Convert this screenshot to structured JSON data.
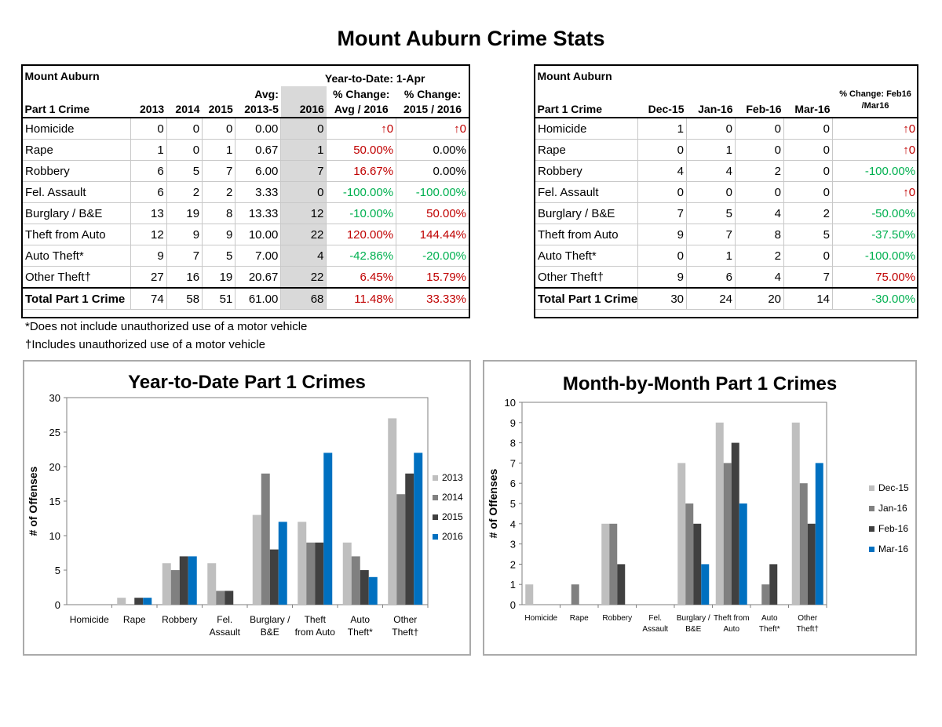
{
  "page_title": "Mount Auburn Crime Stats",
  "ytd_table": {
    "title": "Mount Auburn",
    "ytd_label": "Year-to-Date: 1-Apr",
    "headers": {
      "crime": "Part 1 Crime",
      "y2013": "2013",
      "y2014": "2014",
      "y2015": "2015",
      "avg_top": "Avg:",
      "avg_bottom": "2013-5",
      "y2016": "2016",
      "pct1_top": "% Change:",
      "pct1_bottom": "Avg / 2016",
      "pct2_top": "% Change:",
      "pct2_bottom": "2015 / 2016"
    },
    "rows": [
      {
        "crime": "Homicide",
        "y2013": "0",
        "y2014": "0",
        "y2015": "0",
        "avg": "0.00",
        "y2016": "0",
        "pct1": "↑0",
        "pct1_color": "red",
        "pct2": "↑0",
        "pct2_color": "red"
      },
      {
        "crime": "Rape",
        "y2013": "1",
        "y2014": "0",
        "y2015": "1",
        "avg": "0.67",
        "y2016": "1",
        "pct1": "50.00%",
        "pct1_color": "red",
        "pct2": "0.00%",
        "pct2_color": "black"
      },
      {
        "crime": "Robbery",
        "y2013": "6",
        "y2014": "5",
        "y2015": "7",
        "avg": "6.00",
        "y2016": "7",
        "pct1": "16.67%",
        "pct1_color": "red",
        "pct2": "0.00%",
        "pct2_color": "black"
      },
      {
        "crime": "Fel. Assault",
        "y2013": "6",
        "y2014": "2",
        "y2015": "2",
        "avg": "3.33",
        "y2016": "0",
        "pct1": "-100.00%",
        "pct1_color": "green",
        "pct2": "-100.00%",
        "pct2_color": "green"
      },
      {
        "crime": "Burglary / B&E",
        "y2013": "13",
        "y2014": "19",
        "y2015": "8",
        "avg": "13.33",
        "y2016": "12",
        "pct1": "-10.00%",
        "pct1_color": "green",
        "pct2": "50.00%",
        "pct2_color": "red"
      },
      {
        "crime": "Theft from Auto",
        "y2013": "12",
        "y2014": "9",
        "y2015": "9",
        "avg": "10.00",
        "y2016": "22",
        "pct1": "120.00%",
        "pct1_color": "red",
        "pct2": "144.44%",
        "pct2_color": "red"
      },
      {
        "crime": "Auto Theft*",
        "y2013": "9",
        "y2014": "7",
        "y2015": "5",
        "avg": "7.00",
        "y2016": "4",
        "pct1": "-42.86%",
        "pct1_color": "green",
        "pct2": "-20.00%",
        "pct2_color": "green"
      },
      {
        "crime": "Other Theft†",
        "y2013": "27",
        "y2014": "16",
        "y2015": "19",
        "avg": "20.67",
        "y2016": "22",
        "pct1": "6.45%",
        "pct1_color": "red",
        "pct2": "15.79%",
        "pct2_color": "red"
      }
    ],
    "total": {
      "crime": "Total Part 1 Crime",
      "y2013": "74",
      "y2014": "58",
      "y2015": "51",
      "avg": "61.00",
      "y2016": "68",
      "pct1": "11.48%",
      "pct1_color": "red",
      "pct2": "33.33%",
      "pct2_color": "red"
    }
  },
  "notes": [
    "*Does not include unauthorized use of a motor vehicle",
    "†Includes unauthorized use of a motor vehicle"
  ],
  "monthly_table": {
    "title": "Mount Auburn",
    "headers": {
      "crime": "Part 1 Crime",
      "m1": "Dec-15",
      "m2": "Jan-16",
      "m3": "Feb-16",
      "m4": "Mar-16",
      "pct_top": "% Change: Feb16",
      "pct_bottom": "/Mar16"
    },
    "rows": [
      {
        "crime": "Homicide",
        "m1": "1",
        "m2": "0",
        "m3": "0",
        "m4": "0",
        "pct": "↑0",
        "pct_color": "red"
      },
      {
        "crime": "Rape",
        "m1": "0",
        "m2": "1",
        "m3": "0",
        "m4": "0",
        "pct": "↑0",
        "pct_color": "red"
      },
      {
        "crime": "Robbery",
        "m1": "4",
        "m2": "4",
        "m3": "2",
        "m4": "0",
        "pct": "-100.00%",
        "pct_color": "green"
      },
      {
        "crime": "Fel. Assault",
        "m1": "0",
        "m2": "0",
        "m3": "0",
        "m4": "0",
        "pct": "↑0",
        "pct_color": "red"
      },
      {
        "crime": "Burglary / B&E",
        "m1": "7",
        "m2": "5",
        "m3": "4",
        "m4": "2",
        "pct": "-50.00%",
        "pct_color": "green"
      },
      {
        "crime": "Theft from Auto",
        "m1": "9",
        "m2": "7",
        "m3": "8",
        "m4": "5",
        "pct": "-37.50%",
        "pct_color": "green"
      },
      {
        "crime": "Auto Theft*",
        "m1": "0",
        "m2": "1",
        "m3": "2",
        "m4": "0",
        "pct": "-100.00%",
        "pct_color": "green"
      },
      {
        "crime": "Other Theft†",
        "m1": "9",
        "m2": "6",
        "m3": "4",
        "m4": "7",
        "pct": "75.00%",
        "pct_color": "red"
      }
    ],
    "total": {
      "crime": "Total Part 1 Crime",
      "m1": "30",
      "m2": "24",
      "m3": "20",
      "m4": "14",
      "pct": "-30.00%",
      "pct_color": "green"
    }
  },
  "colors": {
    "red": "#c00000",
    "green": "#00b050",
    "s1": "#bfbfbf",
    "s2": "#808080",
    "s3": "#404040",
    "s4": "#0070c0"
  },
  "chart_data": [
    {
      "type": "bar",
      "title": "Year-to-Date Part 1 Crimes",
      "ylabel": "# of Offenses",
      "xlabel": "",
      "ylim": [
        0,
        30
      ],
      "yticks": [
        0,
        5,
        10,
        15,
        20,
        25,
        30
      ],
      "grid": false,
      "legend": "right",
      "categories": [
        [
          "Homicide"
        ],
        [
          "Rape"
        ],
        [
          "Robbery"
        ],
        [
          "Fel.",
          "Assault"
        ],
        [
          "Burglary /",
          "B&E"
        ],
        [
          "Theft",
          "from Auto"
        ],
        [
          "Auto",
          "Theft*"
        ],
        [
          "Other",
          "Theft†"
        ]
      ],
      "series": [
        {
          "name": "2013",
          "color": "#bfbfbf",
          "values": [
            0,
            1,
            6,
            6,
            13,
            12,
            9,
            27
          ]
        },
        {
          "name": "2014",
          "color": "#808080",
          "values": [
            0,
            0,
            5,
            2,
            19,
            9,
            7,
            16
          ]
        },
        {
          "name": "2015",
          "color": "#404040",
          "values": [
            0,
            1,
            7,
            2,
            8,
            9,
            5,
            19
          ]
        },
        {
          "name": "2016",
          "color": "#0070c0",
          "values": [
            0,
            1,
            7,
            0,
            12,
            22,
            4,
            22
          ]
        }
      ]
    },
    {
      "type": "bar",
      "title": "Month-by-Month Part 1 Crimes",
      "ylabel": "# of Offenses",
      "xlabel": "",
      "ylim": [
        0,
        10
      ],
      "yticks": [
        0,
        1,
        2,
        3,
        4,
        5,
        6,
        7,
        8,
        9,
        10
      ],
      "grid": false,
      "legend": "right",
      "categories": [
        [
          "Homicide"
        ],
        [
          "Rape"
        ],
        [
          "Robbery"
        ],
        [
          "Fel.",
          "Assault"
        ],
        [
          "Burglary /",
          "B&E"
        ],
        [
          "Theft from",
          "Auto"
        ],
        [
          "Auto",
          "Theft*"
        ],
        [
          "Other",
          "Theft†"
        ]
      ],
      "series": [
        {
          "name": "Dec-15",
          "color": "#bfbfbf",
          "values": [
            1,
            0,
            4,
            0,
            7,
            9,
            0,
            9
          ]
        },
        {
          "name": "Jan-16",
          "color": "#808080",
          "values": [
            0,
            1,
            4,
            0,
            5,
            7,
            1,
            6
          ]
        },
        {
          "name": "Feb-16",
          "color": "#404040",
          "values": [
            0,
            0,
            2,
            0,
            4,
            8,
            2,
            4
          ]
        },
        {
          "name": "Mar-16",
          "color": "#0070c0",
          "values": [
            0,
            0,
            0,
            0,
            2,
            5,
            0,
            7
          ]
        }
      ]
    }
  ]
}
